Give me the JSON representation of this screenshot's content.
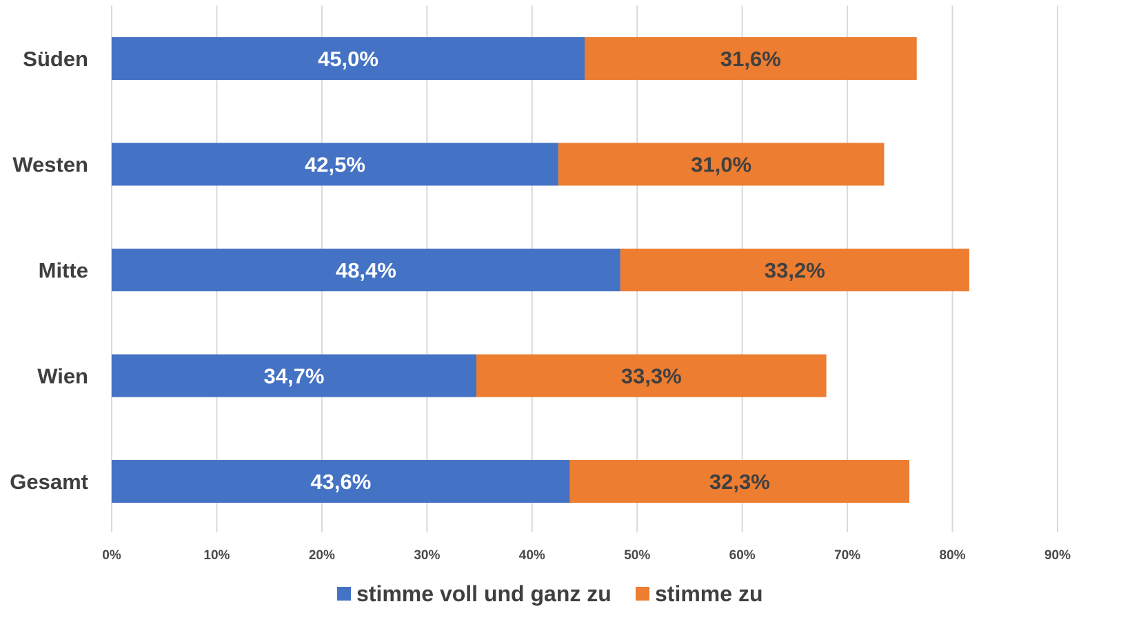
{
  "chart_data": {
    "type": "bar",
    "orientation": "horizontal",
    "stacked": true,
    "categories": [
      "Süden",
      "Westen",
      "Mitte",
      "Wien",
      "Gesamt"
    ],
    "series": [
      {
        "name": "stimme voll und ganz zu",
        "color": "#4472c4",
        "label_color": "#ffffff",
        "values": [
          45.0,
          42.5,
          48.4,
          34.7,
          43.6
        ],
        "labels": [
          "45,0%",
          "42,5%",
          "48,4%",
          "34,7%",
          "43,6%"
        ]
      },
      {
        "name": "stimme zu",
        "color": "#ed7d31",
        "label_color": "#404040",
        "values": [
          31.6,
          31.0,
          33.2,
          33.3,
          32.3
        ],
        "labels": [
          "31,6%",
          "31,0%",
          "33,2%",
          "33,3%",
          "32,3%"
        ]
      }
    ],
    "xlim": [
      0,
      90
    ],
    "xticks": [
      0,
      10,
      20,
      30,
      40,
      50,
      60,
      70,
      80,
      90
    ],
    "xtick_labels": [
      "0%",
      "10%",
      "20%",
      "30%",
      "40%",
      "50%",
      "60%",
      "70%",
      "80%",
      "90%"
    ],
    "title": "",
    "xlabel": "",
    "ylabel": "",
    "grid": true,
    "legend_position": "bottom"
  }
}
